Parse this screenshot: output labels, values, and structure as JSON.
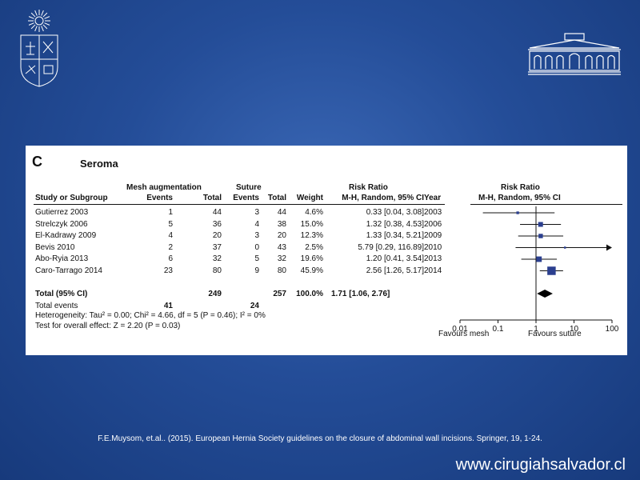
{
  "panel": {
    "letter": "C",
    "title": "Seroma"
  },
  "headers": {
    "mesh_group": "Mesh augmentation",
    "suture_group": "Suture",
    "risk_ratio_left": "Risk Ratio",
    "risk_ratio_right": "Risk Ratio",
    "study": "Study or Subgroup",
    "events1": "Events",
    "total1": "Total",
    "events2": "Events",
    "total2": "Total",
    "weight": "Weight",
    "method_ci": "M-H, Random, 95% CI",
    "year": "Year",
    "method_ci_right": "M-H, Random, 95% CI"
  },
  "studies": [
    {
      "name": "Gutierrez 2003",
      "e1": "1",
      "t1": "44",
      "e2": "3",
      "t2": "44",
      "weight": "4.6%",
      "ci": "0.33 [0.04, 3.08]",
      "year": "2003"
    },
    {
      "name": "Strelczyk 2006",
      "e1": "5",
      "t1": "36",
      "e2": "4",
      "t2": "38",
      "weight": "15.0%",
      "ci": "1.32 [0.38, 4.53]",
      "year": "2006"
    },
    {
      "name": "El-Kadrawy 2009",
      "e1": "4",
      "t1": "20",
      "e2": "3",
      "t2": "20",
      "weight": "12.3%",
      "ci": "1.33 [0.34, 5.21]",
      "year": "2009"
    },
    {
      "name": "Bevis 2010",
      "e1": "2",
      "t1": "37",
      "e2": "0",
      "t2": "43",
      "weight": "2.5%",
      "ci": "5.79 [0.29, 116.89]",
      "year": "2010"
    },
    {
      "name": "Abo-Ryia 2013",
      "e1": "6",
      "t1": "32",
      "e2": "5",
      "t2": "32",
      "weight": "19.6%",
      "ci": "1.20 [0.41, 3.54]",
      "year": "2013"
    },
    {
      "name": "Caro-Tarrago 2014",
      "e1": "23",
      "t1": "80",
      "e2": "9",
      "t2": "80",
      "weight": "45.9%",
      "ci": "2.56 [1.26, 5.17]",
      "year": "2014"
    }
  ],
  "total": {
    "label": "Total (95% CI)",
    "t1": "249",
    "t2": "257",
    "weight": "100.0%",
    "ci": "1.71 [1.06, 2.76]"
  },
  "total_events": {
    "label": "Total events",
    "e1": "41",
    "e2": "24"
  },
  "heterogeneity": "Heterogeneity: Tau² = 0.00; Chi² = 4.66, df = 5 (P = 0.46); I² = 0%",
  "overall_effect": "Test for overall effect: Z = 2.20 (P = 0.03)",
  "axis": {
    "favours_left": "Favours mesh",
    "favours_right": "Favours suture"
  },
  "chart_data": {
    "type": "forest",
    "title": "Seroma",
    "scale": "log",
    "xlim": [
      0.01,
      100
    ],
    "ticks": [
      {
        "value": 0.01,
        "label": "0.01"
      },
      {
        "value": 0.1,
        "label": "0.1"
      },
      {
        "value": 1,
        "label": "1"
      },
      {
        "value": 10,
        "label": "10"
      },
      {
        "value": 100,
        "label": "100"
      }
    ],
    "studies": [
      {
        "name": "Gutierrez 2003",
        "rr": 0.33,
        "lower": 0.04,
        "upper": 3.08,
        "weight": 4.6
      },
      {
        "name": "Strelczyk 2006",
        "rr": 1.32,
        "lower": 0.38,
        "upper": 4.53,
        "weight": 15.0
      },
      {
        "name": "El-Kadrawy 2009",
        "rr": 1.33,
        "lower": 0.34,
        "upper": 5.21,
        "weight": 12.3
      },
      {
        "name": "Bevis 2010",
        "rr": 5.79,
        "lower": 0.29,
        "upper": 116.89,
        "weight": 2.5
      },
      {
        "name": "Abo-Ryia 2013",
        "rr": 1.2,
        "lower": 0.41,
        "upper": 3.54,
        "weight": 19.6
      },
      {
        "name": "Caro-Tarrago 2014",
        "rr": 2.56,
        "lower": 1.26,
        "upper": 5.17,
        "weight": 45.9
      }
    ],
    "pooled": {
      "rr": 1.71,
      "lower": 1.06,
      "upper": 2.76
    },
    "colors": {
      "marker": "#2b3f8f",
      "line": "#111111"
    }
  },
  "citation": "F.E.Muysom, et.al.. (2015). European Hernia Society guidelines on the closure of abdominal wall incisions. Springer, 19, 1-24.",
  "website": "www.cirugiahsalvador.cl"
}
